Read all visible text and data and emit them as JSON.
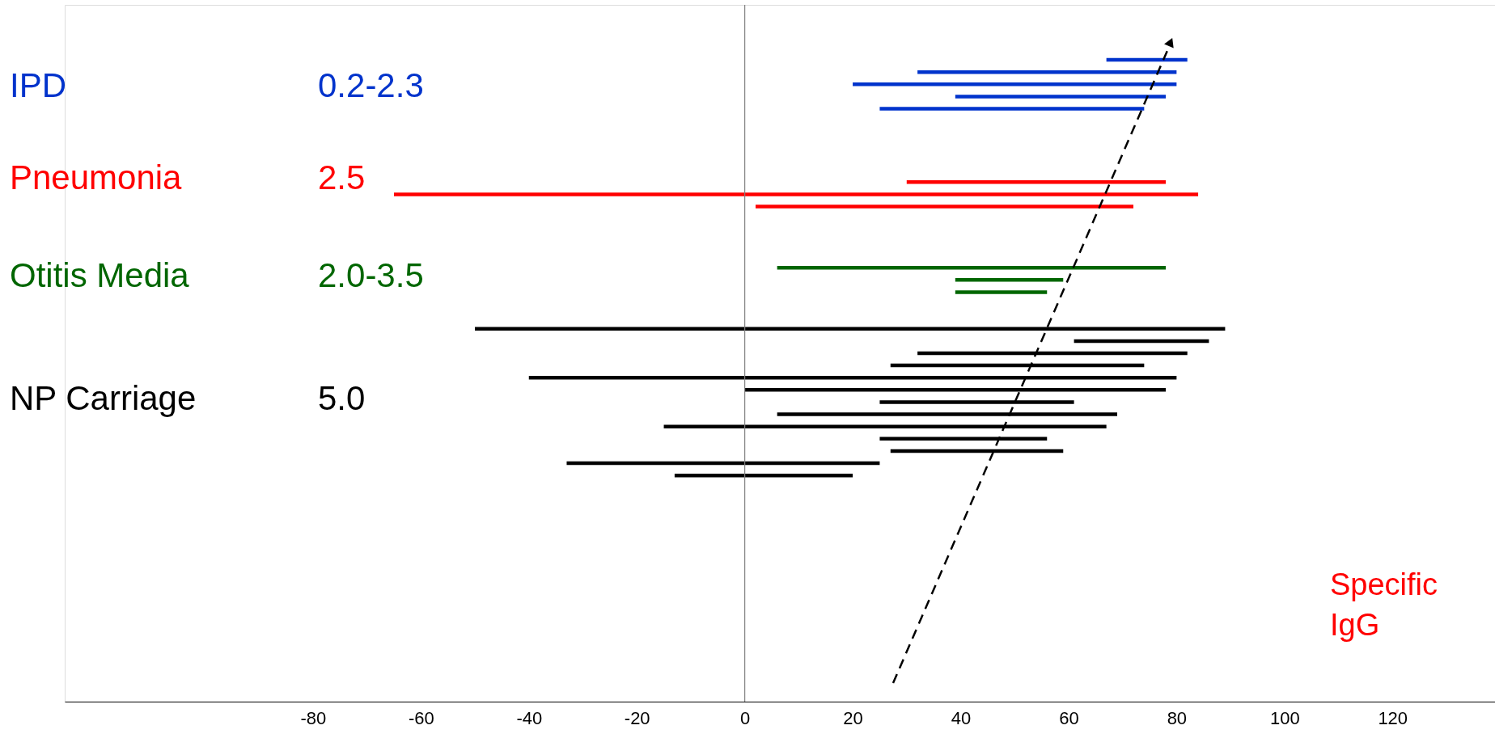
{
  "chart_data": {
    "type": "bar",
    "orientation": "horizontal",
    "categories": [
      null,
      null,
      null,
      null,
      null,
      null,
      null,
      null,
      null,
      null,
      null,
      null,
      null,
      null,
      null,
      null,
      null,
      null,
      null,
      null,
      null,
      null,
      null,
      null,
      null,
      null,
      null,
      null,
      null,
      null,
      null,
      null,
      null,
      null,
      null,
      null,
      null,
      null,
      null,
      null,
      null,
      null,
      null,
      null,
      null,
      null,
      null,
      null,
      null,
      null,
      null,
      null,
      null,
      null,
      null,
      null,
      null
    ],
    "base": [
      null,
      null,
      null,
      null,
      67,
      32,
      20,
      39,
      25,
      null,
      null,
      null,
      null,
      null,
      30,
      -65,
      2,
      null,
      null,
      null,
      null,
      6,
      39,
      39,
      null,
      null,
      -50,
      61,
      32,
      27,
      -40,
      0,
      25,
      6,
      -15,
      25,
      27,
      -33,
      -13,
      null,
      null,
      null,
      null,
      null,
      null,
      null,
      null,
      null,
      null,
      null,
      null,
      null,
      null,
      null,
      null,
      null,
      null
    ],
    "values": [
      null,
      null,
      null,
      null,
      15,
      48,
      60,
      39,
      49,
      null,
      null,
      null,
      null,
      null,
      48,
      149,
      70,
      null,
      null,
      null,
      null,
      72,
      20,
      17,
      null,
      null,
      139,
      25,
      50,
      47,
      120,
      78,
      36,
      63,
      82,
      31,
      32,
      58,
      33,
      null,
      null,
      null,
      null,
      null,
      null,
      null,
      null,
      null,
      null,
      null,
      null,
      null,
      null,
      null,
      null,
      null,
      null
    ],
    "colors": [
      null,
      null,
      null,
      null,
      "#0033cc",
      "#0033cc",
      "#0033cc",
      "#0033cc",
      "#0033cc",
      null,
      null,
      null,
      null,
      null,
      "#ff0000",
      "#ff0000",
      "#ff0000",
      null,
      null,
      null,
      null,
      "#006600",
      "#006600",
      "#006600",
      null,
      null,
      "#000000",
      "#000000",
      "#000000",
      "#000000",
      "#000000",
      "#000000",
      "#000000",
      "#000000",
      "#000000",
      "#000000",
      "#000000",
      "#000000",
      "#000000",
      null,
      null,
      null,
      null,
      null,
      null,
      null,
      null,
      null,
      null,
      null,
      null,
      null,
      null,
      null,
      null,
      null,
      null
    ],
    "xlim": [
      -126,
      139
    ],
    "xticks": [
      -80,
      -60,
      -40,
      -20,
      0,
      20,
      40,
      60,
      80,
      100,
      120
    ],
    "ref_lines": [
      {
        "axis": "x",
        "value": 0,
        "label": null,
        "color": "#808080"
      }
    ],
    "annotations": [
      "IPD",
      "0.2-2.3",
      "Pneumonia",
      "2.5",
      "Otitis Media",
      "2.0-3.5",
      "NP Carriage",
      "5.0",
      "Specific IgG"
    ]
  }
}
